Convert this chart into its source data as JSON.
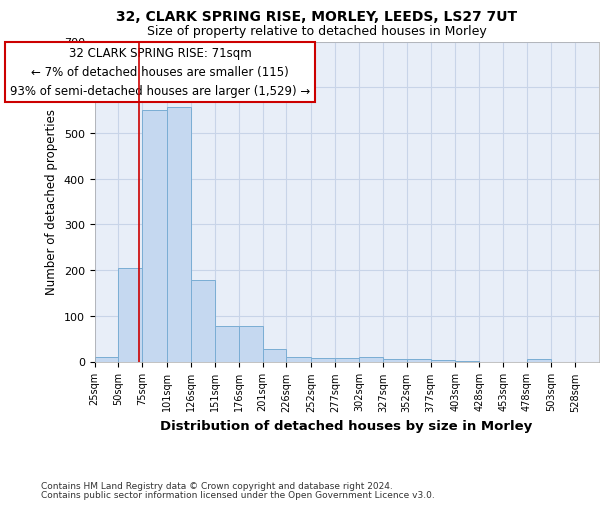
{
  "title1": "32, CLARK SPRING RISE, MORLEY, LEEDS, LS27 7UT",
  "title2": "Size of property relative to detached houses in Morley",
  "xlabel": "Distribution of detached houses by size in Morley",
  "ylabel": "Number of detached properties",
  "footnote1": "Contains HM Land Registry data © Crown copyright and database right 2024.",
  "footnote2": "Contains public sector information licensed under the Open Government Licence v3.0.",
  "annotation_line1": "32 CLARK SPRING RISE: 71sqm",
  "annotation_line2": "← 7% of detached houses are smaller (115)",
  "annotation_line3": "93% of semi-detached houses are larger (1,529) →",
  "bar_left_edges": [
    25,
    50,
    75,
    101,
    126,
    151,
    176,
    201,
    226,
    252,
    277,
    302,
    327,
    352,
    377,
    403,
    428,
    453,
    478,
    503,
    528
  ],
  "bar_heights": [
    10,
    205,
    550,
    557,
    178,
    77,
    77,
    27,
    10,
    8,
    8,
    10,
    6,
    5,
    3,
    2,
    0,
    0,
    5,
    0,
    0
  ],
  "bar_widths": [
    25,
    25,
    26,
    25,
    25,
    25,
    25,
    25,
    26,
    25,
    25,
    25,
    25,
    25,
    26,
    25,
    25,
    25,
    25,
    25,
    25
  ],
  "bar_color": "#c5d8f0",
  "bar_edge_color": "#7aadd4",
  "vline_color": "#cc0000",
  "vline_x": 71,
  "ylim": [
    0,
    700
  ],
  "xlim": [
    25,
    553
  ],
  "tick_labels": [
    "25sqm",
    "50sqm",
    "75sqm",
    "101sqm",
    "126sqm",
    "151sqm",
    "176sqm",
    "201sqm",
    "226sqm",
    "252sqm",
    "277sqm",
    "302sqm",
    "327sqm",
    "352sqm",
    "377sqm",
    "403sqm",
    "428sqm",
    "453sqm",
    "478sqm",
    "503sqm",
    "528sqm"
  ],
  "tick_positions": [
    25,
    50,
    75,
    101,
    126,
    151,
    176,
    201,
    226,
    252,
    277,
    302,
    327,
    352,
    377,
    403,
    428,
    453,
    478,
    503,
    528
  ],
  "grid_color": "#c8d4e8",
  "plot_bg_color": "#e8eef8",
  "fig_bg_color": "#ffffff",
  "annot_border_color": "#cc0000",
  "yticks": [
    0,
    100,
    200,
    300,
    400,
    500,
    600,
    700
  ]
}
